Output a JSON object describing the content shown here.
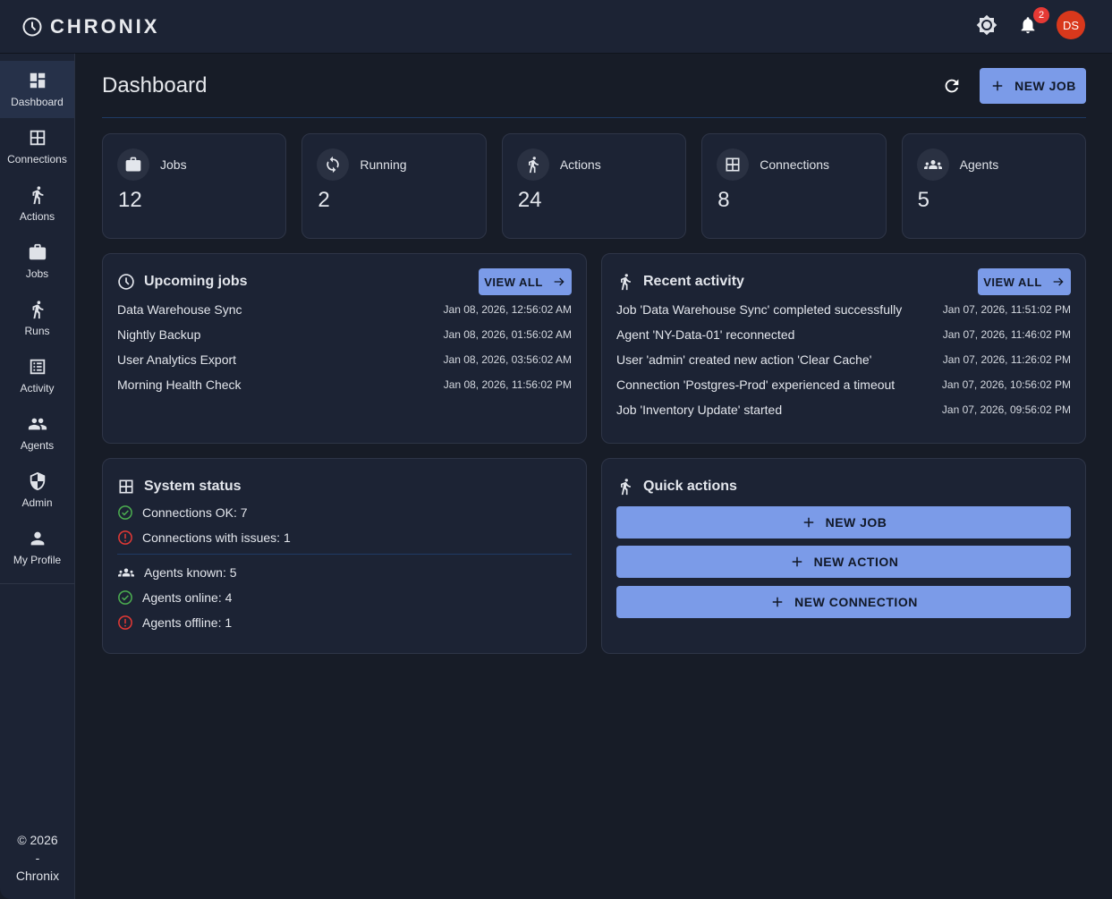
{
  "app": {
    "name": "CHRONIX",
    "notifications": "2",
    "avatar": "DS"
  },
  "sidebar": {
    "items": [
      {
        "label": "Dashboard"
      },
      {
        "label": "Connections"
      },
      {
        "label": "Actions"
      },
      {
        "label": "Jobs"
      },
      {
        "label": "Runs"
      },
      {
        "label": "Activity"
      },
      {
        "label": "Agents"
      },
      {
        "label": "Admin"
      },
      {
        "label": "My Profile"
      }
    ],
    "footer": {
      "copyright": "© 2026",
      "sep": "-",
      "name": "Chronix"
    }
  },
  "header": {
    "title": "Dashboard",
    "new_job": "NEW JOB"
  },
  "stats": [
    {
      "label": "Jobs",
      "value": "12"
    },
    {
      "label": "Running",
      "value": "2"
    },
    {
      "label": "Actions",
      "value": "24"
    },
    {
      "label": "Connections",
      "value": "8"
    },
    {
      "label": "Agents",
      "value": "5"
    }
  ],
  "upcoming": {
    "title": "Upcoming jobs",
    "view_all": "VIEW ALL",
    "rows": [
      {
        "name": "Data Warehouse Sync",
        "time": "Jan 08, 2026, 12:56:02 AM"
      },
      {
        "name": "Nightly Backup",
        "time": "Jan 08, 2026, 01:56:02 AM"
      },
      {
        "name": "User Analytics Export",
        "time": "Jan 08, 2026, 03:56:02 AM"
      },
      {
        "name": "Morning Health Check",
        "time": "Jan 08, 2026, 11:56:02 PM"
      }
    ]
  },
  "recent": {
    "title": "Recent activity",
    "view_all": "VIEW ALL",
    "rows": [
      {
        "name": "Job 'Data Warehouse Sync' completed successfully",
        "time": "Jan 07, 2026, 11:51:02 PM"
      },
      {
        "name": "Agent 'NY-Data-01' reconnected",
        "time": "Jan 07, 2026, 11:46:02 PM"
      },
      {
        "name": "User 'admin' created new action 'Clear Cache'",
        "time": "Jan 07, 2026, 11:26:02 PM"
      },
      {
        "name": "Connection 'Postgres-Prod' experienced a timeout",
        "time": "Jan 07, 2026, 10:56:02 PM"
      },
      {
        "name": "Job 'Inventory Update' started",
        "time": "Jan 07, 2026, 09:56:02 PM"
      }
    ]
  },
  "system": {
    "title": "System status",
    "conn_ok": "Connections OK: 7",
    "conn_issues": "Connections with issues: 1",
    "agents_known": "Agents known: 5",
    "agents_online": "Agents online: 4",
    "agents_offline": "Agents offline: 1"
  },
  "quick": {
    "title": "Quick actions",
    "new_job": "NEW JOB",
    "new_action": "NEW ACTION",
    "new_connection": "NEW CONNECTION"
  },
  "colors": {
    "accent": "#7b9be8",
    "ok": "#4caf50",
    "error": "#e53935",
    "avatar": "#d8381c"
  }
}
